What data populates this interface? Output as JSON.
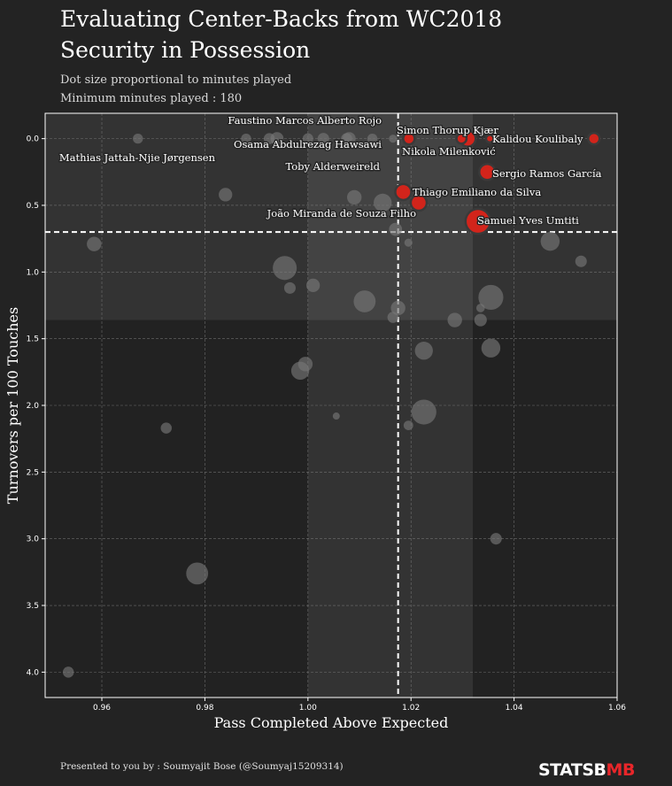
{
  "header": {
    "title_line1": "Evaluating Center-Backs from WC2018",
    "title_line2": "Security in Possession",
    "subtitle_line1": "Dot size proportional to minutes played",
    "subtitle_line2": "Minimum minutes played : 180"
  },
  "footer": {
    "credit": "Presented to you by : Soumyajit Bose (@Soumyaj15209314)",
    "brand_part1": "STATSB",
    "brand_part2": "MB"
  },
  "colors": {
    "background": "#232323",
    "highlight": "#d2241b",
    "muted_points": "#777777",
    "shade": "#3a3a3a"
  },
  "chart_data": {
    "type": "scatter",
    "xlabel": "Pass Completed Above Expected",
    "ylabel": "Turnovers per 100 Touches",
    "xlim": [
      0.949,
      1.06
    ],
    "ylim": [
      4.19,
      -0.19
    ],
    "y_inverted": true,
    "xticks": [
      "0.96",
      "0.98",
      "1.00",
      "1.02",
      "1.04",
      "1.06"
    ],
    "yticks": [
      "0.0",
      "0.5",
      "1.0",
      "1.5",
      "2.0",
      "2.5",
      "3.0",
      "3.5",
      "4.0"
    ],
    "grid": true,
    "reference_lines": {
      "x": 1.0175,
      "y": 0.7
    },
    "shaded_regions": {
      "x_band": [
        1.0,
        1.032
      ],
      "y_band": [
        0.0,
        1.36
      ]
    },
    "highlighted": [
      {
        "name": "Simon Thorup Kjær",
        "x": 1.0196,
        "y": 0.0,
        "minutes": 270
      },
      {
        "name": "Nikola Milenković",
        "x": 1.031,
        "y": 0.0,
        "minutes": 360
      },
      {
        "name": "Kalidou Koulibaly",
        "x": 1.0555,
        "y": 0.0,
        "minutes": 270
      },
      {
        "name": "Sergio Ramos García",
        "x": 1.0348,
        "y": 0.25,
        "minutes": 360
      },
      {
        "name": "Thiago Emiliano da Silva",
        "x": 1.0185,
        "y": 0.4,
        "minutes": 360
      },
      {
        "name": "João Miranda de Souza Filho",
        "x": 1.0215,
        "y": 0.48,
        "minutes": 360
      },
      {
        "name": "Samuel Yves Umtiti",
        "x": 1.033,
        "y": 0.62,
        "minutes": 540
      },
      {
        "name": "",
        "x": 1.0298,
        "y": 0.0,
        "minutes": 240
      },
      {
        "name": "",
        "x": 1.0353,
        "y": 0.0,
        "minutes": 190
      }
    ],
    "other_labels": [
      {
        "name": "Faustino Marcos Alberto Rojo",
        "x": 0.996,
        "y": 0.0
      },
      {
        "name": "Osama Abdulrezag Hawsawi",
        "x": 0.993,
        "y": 0.0
      },
      {
        "name": "Mathias Jattah-Njie Jørgensen",
        "x": 0.967,
        "y": 0.0
      },
      {
        "name": "Toby Alderweireld",
        "x": 1.008,
        "y": 0.0
      }
    ],
    "others": [
      {
        "x": 0.967,
        "y": 0.0,
        "minutes": 240
      },
      {
        "x": 0.988,
        "y": 0.0,
        "minutes": 240
      },
      {
        "x": 0.9925,
        "y": 0.0,
        "minutes": 260
      },
      {
        "x": 0.994,
        "y": 0.0,
        "minutes": 300
      },
      {
        "x": 1.0,
        "y": 0.0,
        "minutes": 250
      },
      {
        "x": 1.003,
        "y": 0.0,
        "minutes": 270
      },
      {
        "x": 1.0075,
        "y": 0.0,
        "minutes": 260
      },
      {
        "x": 1.008,
        "y": 0.0,
        "minutes": 300
      },
      {
        "x": 1.0125,
        "y": 0.0,
        "minutes": 240
      },
      {
        "x": 1.0165,
        "y": 0.0,
        "minutes": 200
      },
      {
        "x": 0.984,
        "y": 0.42,
        "minutes": 310
      },
      {
        "x": 1.009,
        "y": 0.44,
        "minutes": 330
      },
      {
        "x": 1.0145,
        "y": 0.48,
        "minutes": 400
      },
      {
        "x": 1.017,
        "y": 0.68,
        "minutes": 300
      },
      {
        "x": 1.0195,
        "y": 0.78,
        "minutes": 200
      },
      {
        "x": 0.9585,
        "y": 0.79,
        "minutes": 330
      },
      {
        "x": 1.047,
        "y": 0.77,
        "minutes": 420
      },
      {
        "x": 1.053,
        "y": 0.92,
        "minutes": 270
      },
      {
        "x": 0.9955,
        "y": 0.97,
        "minutes": 520
      },
      {
        "x": 0.9965,
        "y": 1.12,
        "minutes": 270
      },
      {
        "x": 1.001,
        "y": 1.1,
        "minutes": 310
      },
      {
        "x": 1.011,
        "y": 1.22,
        "minutes": 480
      },
      {
        "x": 1.0165,
        "y": 1.34,
        "minutes": 260
      },
      {
        "x": 1.0175,
        "y": 1.27,
        "minutes": 330
      },
      {
        "x": 1.0335,
        "y": 1.27,
        "minutes": 210
      },
      {
        "x": 1.0355,
        "y": 1.19,
        "minutes": 540
      },
      {
        "x": 1.0285,
        "y": 1.36,
        "minutes": 330
      },
      {
        "x": 1.0335,
        "y": 1.36,
        "minutes": 290
      },
      {
        "x": 1.0225,
        "y": 1.59,
        "minutes": 400
      },
      {
        "x": 1.0355,
        "y": 1.57,
        "minutes": 420
      },
      {
        "x": 0.9995,
        "y": 1.69,
        "minutes": 330
      },
      {
        "x": 0.9985,
        "y": 1.74,
        "minutes": 400
      },
      {
        "x": 1.0225,
        "y": 2.05,
        "minutes": 540
      },
      {
        "x": 1.0055,
        "y": 2.08,
        "minutes": 180
      },
      {
        "x": 1.0195,
        "y": 2.15,
        "minutes": 230
      },
      {
        "x": 0.9725,
        "y": 2.17,
        "minutes": 260
      },
      {
        "x": 1.0365,
        "y": 3.0,
        "minutes": 270
      },
      {
        "x": 0.9785,
        "y": 3.26,
        "minutes": 480
      },
      {
        "x": 0.9535,
        "y": 4.0,
        "minutes": 260
      }
    ]
  }
}
